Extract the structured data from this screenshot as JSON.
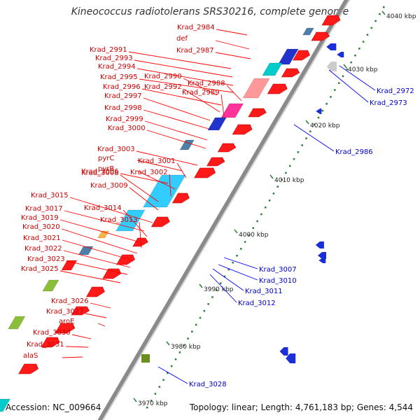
{
  "title": "Kineococcus radiotolerans SRS30216, complete genome",
  "footer": {
    "accession": "Accession: NC_009664",
    "summary": "Topology: linear; Length: 4,761,183 bp; Genes: 4,544"
  },
  "scale_labels": [
    "4040 kbp",
    "4030 kbp",
    "4020 kbp",
    "4010 kbp",
    "4000 kbp",
    "3990 kbp",
    "3980 kbp",
    "3970 kbp"
  ],
  "left_labels": [
    "Krad_2984",
    "def",
    "Krad_2987",
    "Krad_2991",
    "Krad_2993",
    "Krad_2994",
    "Krad_2990",
    "Krad_2995",
    "Krad_2988",
    "Krad_2996",
    "Krad_2992",
    "Krad_2989",
    "Krad_2997",
    "Krad_2998",
    "Krad_2999",
    "Krad_3000",
    "Krad_3003",
    "pyrC",
    "Krad_3001",
    "Krad_3006",
    "pyrB",
    "Krad_3002",
    "Krad_3008",
    "Krad_3009",
    "Krad_3015",
    "Krad_3017",
    "Krad_3014",
    "Krad_3019",
    "Krad_3013",
    "Krad_3020",
    "Krad_3021",
    "Krad_3022",
    "Krad_3023",
    "Krad_3025",
    "Krad_3026",
    "Krad_3027",
    "aroE",
    "Krad_3030",
    "Krad_3031",
    "alaS"
  ],
  "right_labels": [
    "Krad_2972",
    "Krad_2973",
    "Krad_2986",
    "Krad_3007",
    "Krad_3010",
    "Krad_3011",
    "Krad_3012",
    "Krad_3028"
  ],
  "colors": {
    "forward_label": "#cc0000",
    "reverse_label": "#0000cc",
    "backbone": "#777777",
    "scale_tick": "#2e7d32"
  }
}
